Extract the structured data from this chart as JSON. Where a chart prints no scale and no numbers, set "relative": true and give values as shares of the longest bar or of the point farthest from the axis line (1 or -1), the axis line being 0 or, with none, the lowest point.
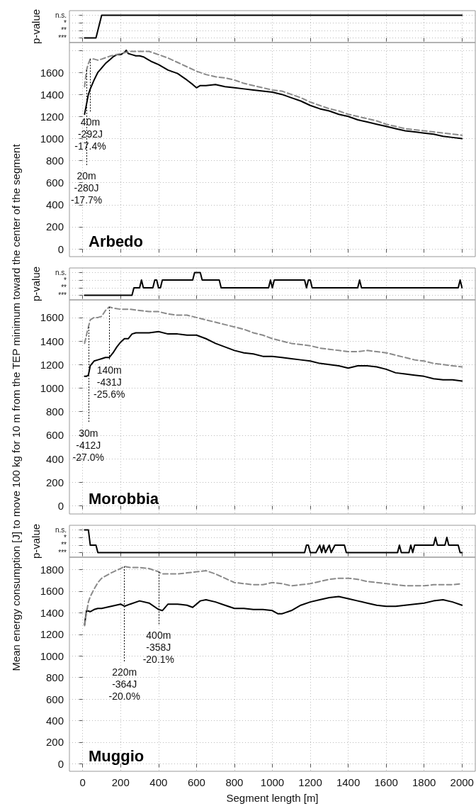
{
  "chart_data": [
    {
      "type": "line",
      "ylabel": "p-value",
      "xlim": [
        -70,
        2070
      ],
      "xticks": [
        0,
        200,
        400,
        600,
        800,
        1000,
        1200,
        1400,
        1600,
        1800,
        2000
      ],
      "relative": true,
      "tick_labels": "y",
      "grid": true,
      "marker": "none",
      "annotations": [
        "n.s.",
        "*",
        "**",
        "***"
      ],
      "series": [
        {
          "color": "#000000",
          "x": [
            10,
            70,
            100,
            2000
          ],
          "values": [
            0,
            0,
            1,
            1
          ]
        }
      ]
    },
    {
      "type": "line",
      "title": "Arbedo",
      "xlim": [
        -70,
        2070
      ],
      "xticks": [
        0,
        200,
        400,
        600,
        800,
        1000,
        1200,
        1400,
        1600,
        1800,
        2000
      ],
      "ylim": [
        -70,
        1870
      ],
      "yticks": [
        0,
        200,
        400,
        600,
        800,
        1000,
        1200,
        1400,
        1600,
        {
          "value": 1800,
          "label": null
        }
      ],
      "tick_labels": "y",
      "grid": true,
      "marker": "none",
      "annotations": [
        {
          "text": "20m\n-280J\n-17.7%",
          "x": 20,
          "y": 1620
        },
        {
          "text": "40m\n-292J\n-17.4%",
          "x": 40,
          "y": 1720
        }
      ],
      "series": [
        {
          "color": "#000000",
          "x": [
            10,
            20,
            30,
            40,
            60,
            80,
            100,
            120,
            140,
            160,
            180,
            200,
            220,
            230,
            240,
            260,
            280,
            300,
            320,
            340,
            360,
            400,
            450,
            500,
            550,
            580,
            600,
            620,
            650,
            700,
            750,
            800,
            850,
            900,
            950,
            1000,
            1050,
            1100,
            1150,
            1200,
            1250,
            1300,
            1350,
            1400,
            1450,
            1500,
            1550,
            1600,
            1650,
            1700,
            1750,
            1800,
            1850,
            1900,
            1950,
            2000
          ],
          "values": [
            1220,
            1310,
            1400,
            1450,
            1530,
            1600,
            1640,
            1680,
            1710,
            1740,
            1760,
            1760,
            1780,
            1800,
            1770,
            1760,
            1750,
            1750,
            1740,
            1720,
            1700,
            1670,
            1620,
            1590,
            1530,
            1490,
            1460,
            1480,
            1480,
            1490,
            1470,
            1460,
            1450,
            1440,
            1430,
            1420,
            1400,
            1370,
            1340,
            1300,
            1270,
            1250,
            1220,
            1200,
            1170,
            1150,
            1130,
            1110,
            1090,
            1070,
            1060,
            1050,
            1040,
            1020,
            1010,
            1000
          ]
        },
        {
          "color": "#8a8a8a",
          "line_style": "dashed",
          "x": [
            10,
            20,
            30,
            40,
            60,
            80,
            100,
            150,
            200,
            250,
            300,
            350,
            400,
            450,
            500,
            550,
            600,
            650,
            700,
            750,
            800,
            850,
            900,
            950,
            1000,
            1050,
            1100,
            1150,
            1200,
            1250,
            1300,
            1350,
            1400,
            1450,
            1500,
            1550,
            1600,
            1650,
            1700,
            1750,
            1800,
            1850,
            1900,
            1950,
            2000
          ],
          "values": [
            1470,
            1620,
            1680,
            1720,
            1720,
            1710,
            1720,
            1750,
            1770,
            1790,
            1790,
            1790,
            1760,
            1730,
            1690,
            1650,
            1610,
            1580,
            1560,
            1550,
            1530,
            1500,
            1480,
            1460,
            1440,
            1430,
            1400,
            1370,
            1330,
            1300,
            1270,
            1250,
            1220,
            1200,
            1180,
            1160,
            1130,
            1110,
            1090,
            1080,
            1070,
            1060,
            1050,
            1040,
            1030
          ]
        }
      ]
    },
    {
      "type": "line",
      "ylabel": "p-value",
      "xlim": [
        -70,
        2070
      ],
      "xticks": [
        0,
        200,
        400,
        600,
        800,
        1000,
        1200,
        1400,
        1600,
        1800,
        2000
      ],
      "relative": true,
      "tick_labels": "y",
      "grid": true,
      "marker": "none",
      "annotations": [
        "n.s.",
        "*",
        "**",
        "***"
      ],
      "series": [
        {
          "color": "#000000",
          "x": [
            10,
            260,
            270,
            300,
            310,
            320,
            370,
            380,
            390,
            400,
            410,
            420,
            580,
            590,
            620,
            630,
            720,
            730,
            980,
            990,
            1000,
            1010,
            1170,
            1180,
            1190,
            1200,
            1210,
            1450,
            1460,
            1470,
            1980,
            1990,
            2000
          ],
          "values": [
            0,
            0,
            0.33,
            0.33,
            0.67,
            0.33,
            0.33,
            0.67,
            0.67,
            0.33,
            0.33,
            0.67,
            0.67,
            1,
            1,
            0.67,
            0.67,
            0.33,
            0.33,
            0.67,
            0.33,
            0.67,
            0.67,
            0.33,
            0.67,
            0.67,
            0.33,
            0.33,
            0.67,
            0.33,
            0.33,
            0.67,
            0.33
          ]
        }
      ]
    },
    {
      "type": "line",
      "title": "Morobbia",
      "ylabel": "Mean energy consumption [J] to move 100 kg for 10 m from the TEP minimum toward the center of the segment",
      "xlim": [
        -70,
        2070
      ],
      "xticks": [
        0,
        200,
        400,
        600,
        800,
        1000,
        1200,
        1400,
        1600,
        1800,
        2000
      ],
      "ylim": [
        -70,
        1750
      ],
      "yticks": [
        0,
        200,
        400,
        600,
        800,
        1000,
        1200,
        1400,
        1600
      ],
      "tick_labels": "y",
      "grid": true,
      "marker": "none",
      "annotations": [
        {
          "text": "30m\n-412J\n-27.0%",
          "x": 30,
          "y": 1520
        },
        {
          "text": "140m\n-431J\n-25.6%",
          "x": 140,
          "y": 1690
        }
      ],
      "series": [
        {
          "color": "#000000",
          "x": [
            10,
            20,
            30,
            40,
            60,
            80,
            100,
            120,
            140,
            160,
            180,
            200,
            220,
            240,
            260,
            280,
            300,
            350,
            400,
            450,
            500,
            550,
            600,
            650,
            700,
            750,
            800,
            850,
            900,
            950,
            1000,
            1050,
            1100,
            1150,
            1200,
            1250,
            1300,
            1350,
            1400,
            1450,
            1500,
            1550,
            1600,
            1650,
            1700,
            1750,
            1800,
            1850,
            1900,
            1950,
            2000
          ],
          "values": [
            1100,
            1100,
            1110,
            1190,
            1230,
            1240,
            1250,
            1260,
            1260,
            1300,
            1350,
            1390,
            1420,
            1420,
            1460,
            1470,
            1470,
            1470,
            1480,
            1460,
            1460,
            1450,
            1450,
            1420,
            1380,
            1350,
            1320,
            1300,
            1290,
            1270,
            1270,
            1260,
            1250,
            1240,
            1230,
            1210,
            1200,
            1190,
            1170,
            1190,
            1190,
            1180,
            1160,
            1130,
            1120,
            1110,
            1100,
            1080,
            1070,
            1070,
            1060
          ]
        },
        {
          "color": "#8a8a8a",
          "line_style": "dashed",
          "x": [
            10,
            20,
            30,
            40,
            60,
            80,
            100,
            120,
            140,
            160,
            200,
            250,
            300,
            350,
            400,
            450,
            500,
            550,
            600,
            650,
            700,
            750,
            800,
            850,
            900,
            950,
            1000,
            1050,
            1100,
            1150,
            1200,
            1250,
            1300,
            1350,
            1400,
            1450,
            1500,
            1550,
            1600,
            1650,
            1700,
            1750,
            1800,
            1850,
            1900,
            1950,
            2000
          ],
          "values": [
            1380,
            1450,
            1520,
            1580,
            1600,
            1600,
            1610,
            1660,
            1690,
            1680,
            1670,
            1670,
            1660,
            1650,
            1650,
            1630,
            1620,
            1620,
            1600,
            1580,
            1560,
            1540,
            1520,
            1500,
            1470,
            1450,
            1420,
            1400,
            1380,
            1370,
            1360,
            1340,
            1330,
            1320,
            1310,
            1310,
            1320,
            1310,
            1300,
            1280,
            1260,
            1240,
            1230,
            1210,
            1200,
            1190,
            1180
          ]
        }
      ]
    },
    {
      "type": "line",
      "ylabel": "p-value",
      "xlim": [
        -70,
        2070
      ],
      "xticks": [
        0,
        200,
        400,
        600,
        800,
        1000,
        1200,
        1400,
        1600,
        1800,
        2000
      ],
      "relative": true,
      "tick_labels": "y",
      "grid": true,
      "marker": "none",
      "annotations": [
        "n.s.",
        "*",
        "**",
        "***"
      ],
      "series": [
        {
          "color": "#000000",
          "x": [
            10,
            30,
            40,
            70,
            80,
            1170,
            1180,
            1190,
            1200,
            1230,
            1250,
            1260,
            1270,
            1280,
            1300,
            1310,
            1330,
            1380,
            1390,
            1660,
            1670,
            1680,
            1720,
            1730,
            1740,
            1750,
            1850,
            1860,
            1870,
            1910,
            1920,
            1930,
            1980,
            1990,
            2000
          ],
          "values": [
            1,
            1,
            0.33,
            0.33,
            0,
            0,
            0.33,
            0.33,
            0,
            0,
            0.33,
            0,
            0.33,
            0,
            0.33,
            0,
            0.33,
            0.33,
            0,
            0,
            0.33,
            0,
            0,
            0.33,
            0,
            0.33,
            0.33,
            0.67,
            0.33,
            0.33,
            0.67,
            0.33,
            0.33,
            0,
            0
          ]
        }
      ]
    },
    {
      "type": "line",
      "title": "Muggio",
      "xlabel": "Segment length [m]",
      "xlim": [
        -70,
        2070
      ],
      "xticks": [
        0,
        200,
        400,
        600,
        800,
        1000,
        1200,
        1400,
        1600,
        1800,
        2000
      ],
      "ylim": [
        -70,
        1915
      ],
      "yticks": [
        0,
        200,
        400,
        600,
        800,
        1000,
        1200,
        1400,
        1600,
        1800
      ],
      "grid": true,
      "marker": "none",
      "annotations": [
        {
          "text": "220m\n-364J\n-20.0%",
          "x": 220,
          "y": 1830
        },
        {
          "text": "400m\n-358J\n-20.1%",
          "x": 400,
          "y": 1780
        }
      ],
      "series": [
        {
          "color": "#000000",
          "x": [
            10,
            20,
            40,
            60,
            80,
            100,
            150,
            200,
            220,
            250,
            300,
            350,
            400,
            420,
            450,
            500,
            550,
            580,
            620,
            650,
            700,
            750,
            800,
            850,
            900,
            950,
            1000,
            1030,
            1050,
            1100,
            1150,
            1200,
            1250,
            1300,
            1350,
            1400,
            1450,
            1500,
            1550,
            1600,
            1650,
            1700,
            1750,
            1800,
            1850,
            1900,
            1950,
            2000
          ],
          "values": [
            1290,
            1420,
            1410,
            1430,
            1440,
            1440,
            1460,
            1480,
            1460,
            1480,
            1510,
            1490,
            1430,
            1420,
            1480,
            1480,
            1470,
            1450,
            1510,
            1520,
            1500,
            1470,
            1440,
            1440,
            1430,
            1430,
            1420,
            1390,
            1390,
            1420,
            1470,
            1500,
            1520,
            1540,
            1550,
            1530,
            1510,
            1490,
            1470,
            1460,
            1460,
            1470,
            1480,
            1490,
            1510,
            1520,
            1500,
            1470
          ]
        },
        {
          "color": "#8a8a8a",
          "line_style": "dashed",
          "x": [
            10,
            20,
            30,
            40,
            60,
            80,
            100,
            150,
            200,
            220,
            250,
            300,
            350,
            400,
            420,
            500,
            550,
            600,
            650,
            700,
            750,
            800,
            850,
            900,
            950,
            1000,
            1050,
            1100,
            1150,
            1200,
            1250,
            1300,
            1350,
            1400,
            1450,
            1500,
            1550,
            1600,
            1650,
            1700,
            1750,
            1800,
            1850,
            1900,
            1950,
            2000
          ],
          "values": [
            1280,
            1400,
            1500,
            1550,
            1620,
            1680,
            1720,
            1770,
            1810,
            1830,
            1820,
            1820,
            1810,
            1780,
            1760,
            1760,
            1770,
            1780,
            1790,
            1760,
            1720,
            1680,
            1670,
            1660,
            1660,
            1680,
            1670,
            1650,
            1660,
            1670,
            1690,
            1710,
            1720,
            1720,
            1710,
            1690,
            1680,
            1670,
            1660,
            1650,
            1650,
            1650,
            1660,
            1660,
            1660,
            1670
          ]
        }
      ]
    }
  ]
}
